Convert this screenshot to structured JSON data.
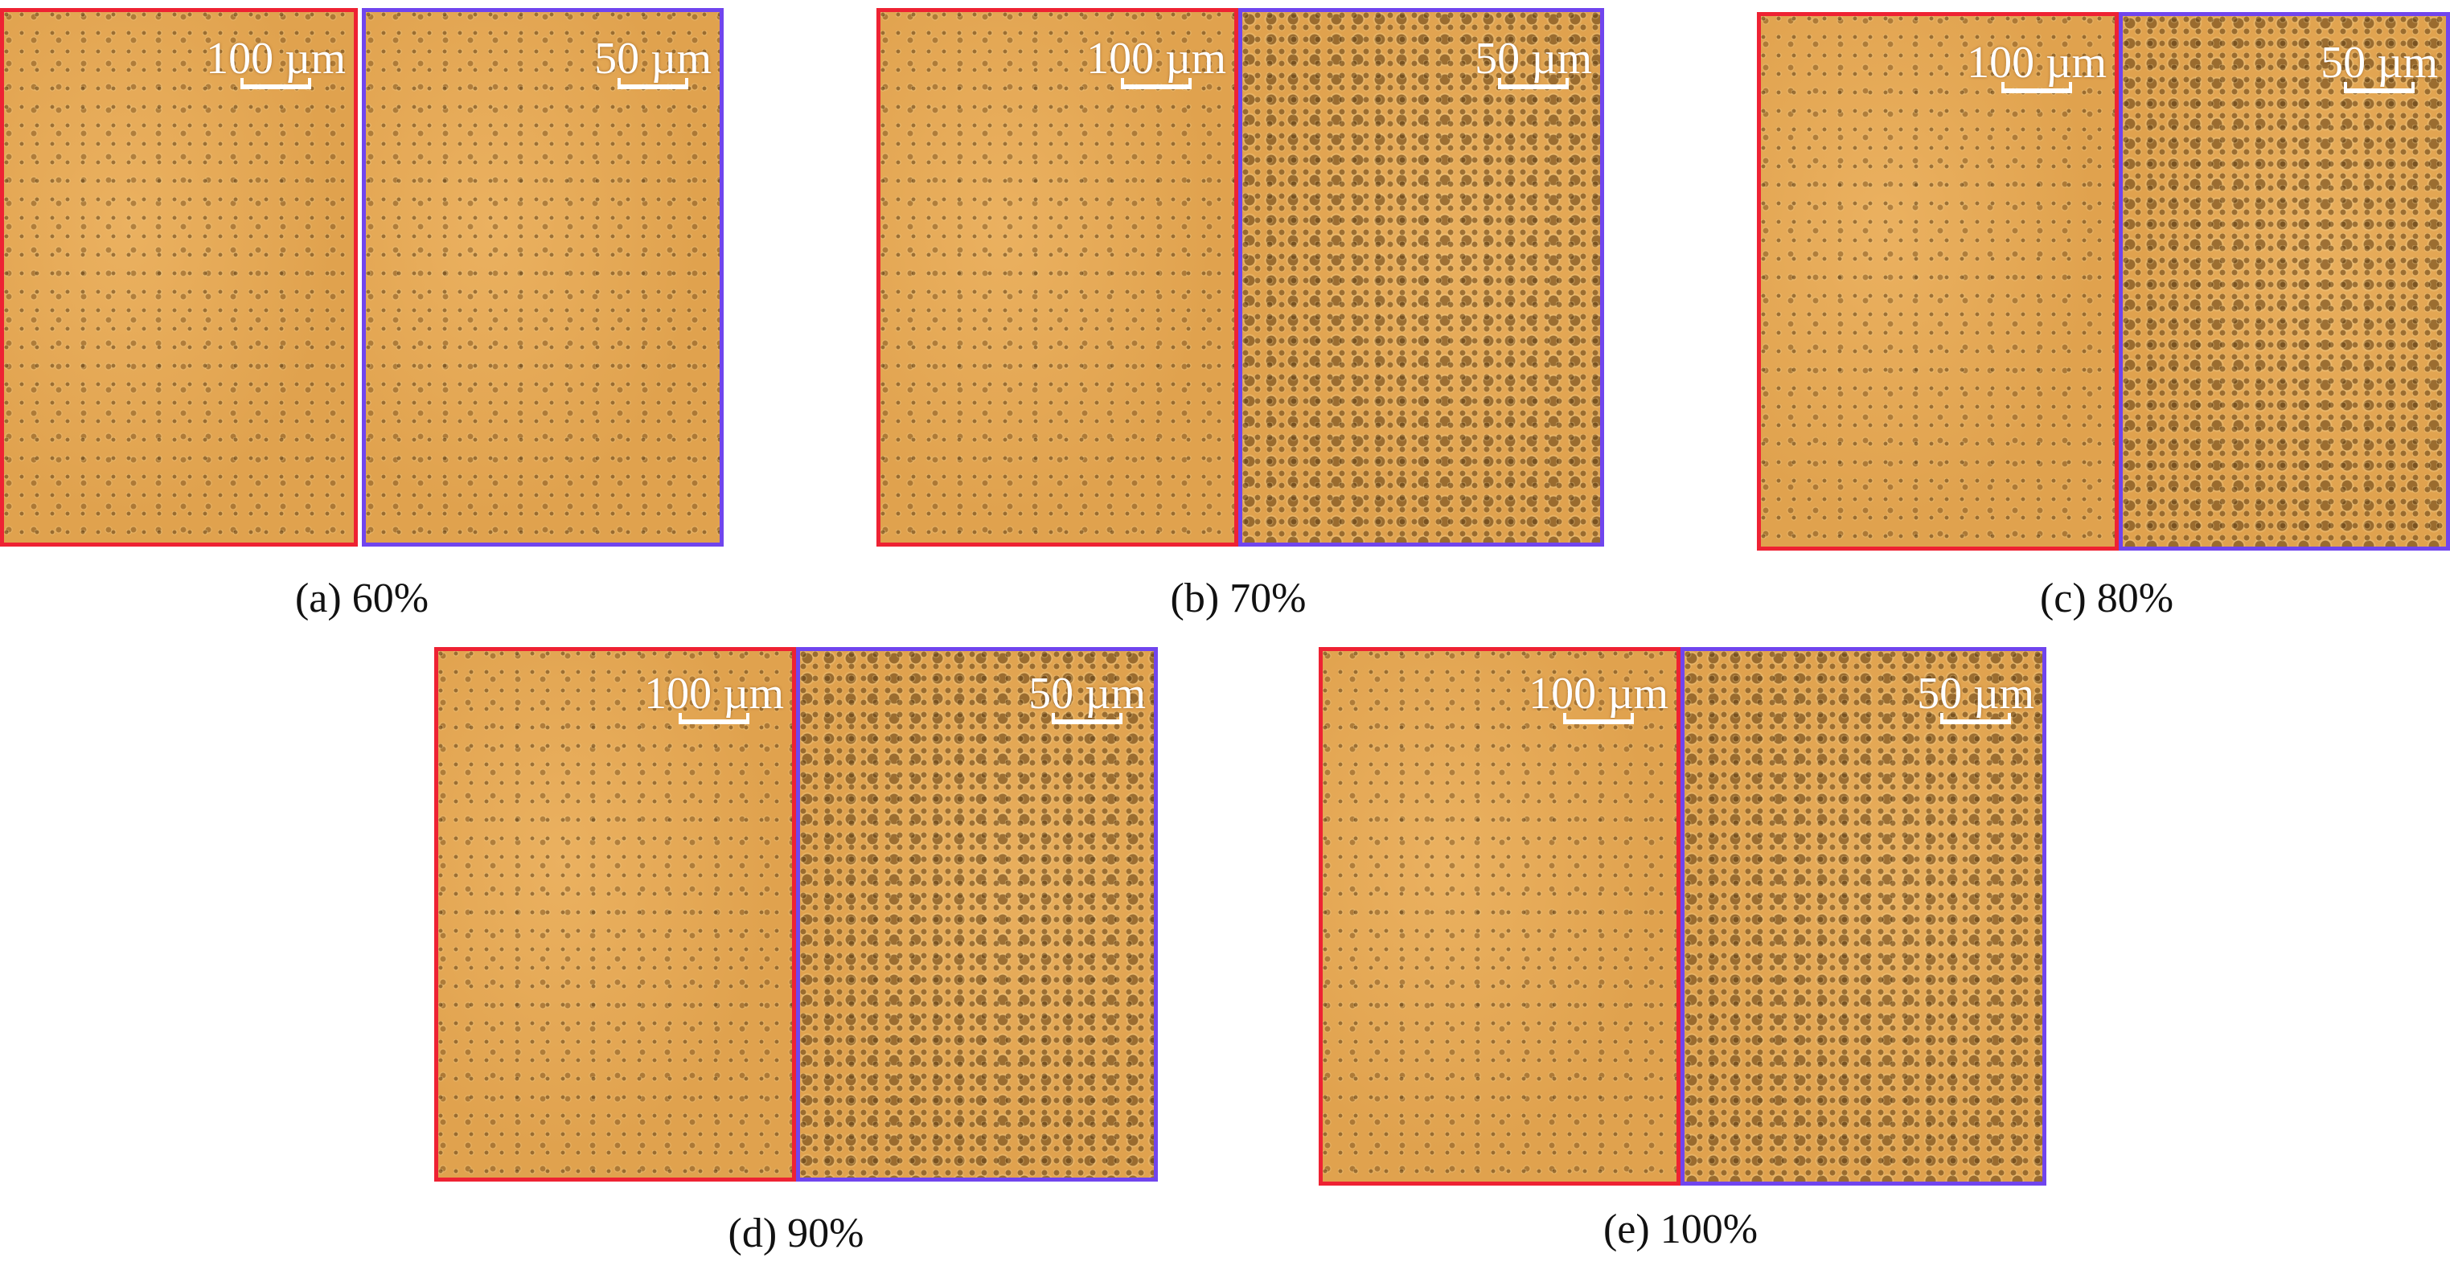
{
  "panels": [
    {
      "caption": "(a) 60%",
      "left_scale": "100 µm",
      "right_scale": "50 µm"
    },
    {
      "caption": "(b) 70%",
      "left_scale": "100 µm",
      "right_scale": "50 µm"
    },
    {
      "caption": "(c) 80%",
      "left_scale": "100 µm",
      "right_scale": "50 µm"
    },
    {
      "caption": "(d) 90%",
      "left_scale": "100 µm",
      "right_scale": "50 µm"
    },
    {
      "caption": "(e) 100%",
      "left_scale": "100 µm",
      "right_scale": "50 µm"
    }
  ],
  "colors": {
    "low_magnification_border": "#ee2233",
    "high_magnification_border": "#7045ee",
    "micrograph_background": "#e0a24e"
  }
}
